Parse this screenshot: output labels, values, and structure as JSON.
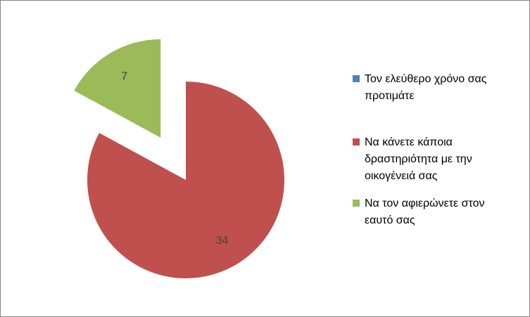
{
  "chart_data": {
    "type": "pie",
    "categories": [
      "Τον ελεύθερο χρόνο σας προτιμάτε",
      "Να κάνετε κάποια δραστηριότητα με την οικογένειά σας",
      "Να τον αφιερώνετε στον εαυτό σας"
    ],
    "values": [
      0,
      34,
      7
    ],
    "colors": [
      "#4f81bd",
      "#c0504d",
      "#9bbb59"
    ],
    "exploded": [
      false,
      false,
      true
    ],
    "legend": "right"
  }
}
